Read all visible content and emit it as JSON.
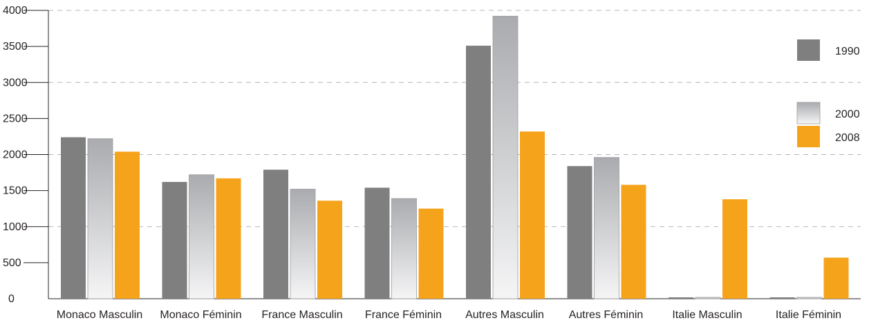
{
  "chart_data": {
    "type": "bar",
    "categories": [
      "Monaco Masculin",
      "Monaco Féminin",
      "France Masculin",
      "France Féminin",
      "Autres Masculin",
      "Autres Féminin",
      "Italie Masculin",
      "Italie Féminin"
    ],
    "series": [
      {
        "name": "1990",
        "values": [
          2240,
          1620,
          1790,
          1540,
          3510,
          1840,
          0,
          0
        ]
      },
      {
        "name": "2000",
        "values": [
          2220,
          1720,
          1520,
          1390,
          3920,
          1960,
          0,
          0
        ]
      },
      {
        "name": "2008",
        "values": [
          2040,
          1670,
          1360,
          1250,
          2320,
          1580,
          1380,
          570
        ]
      }
    ],
    "colors": {
      "1990": "#7f7f80",
      "2000": "#c8c9cb",
      "2008": "#f6a31c"
    },
    "ylim": [
      0,
      4000
    ],
    "yticks": [
      0,
      500,
      1000,
      1500,
      2000,
      2500,
      3000,
      3500,
      4000
    ],
    "gridlines": "dashed at 1000, 2000, 3000, 4000",
    "legend_position": "right"
  }
}
